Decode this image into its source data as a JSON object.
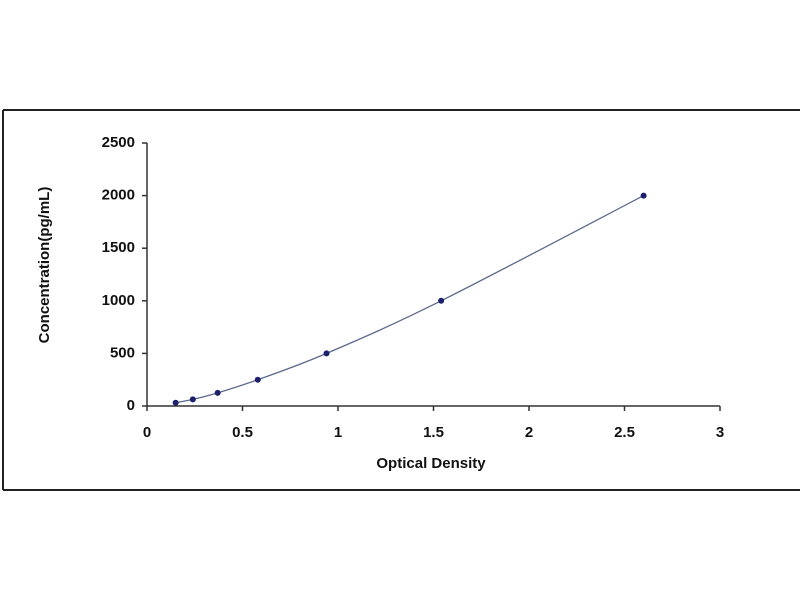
{
  "chart_data": {
    "type": "scatter",
    "x_label": "Optical Density",
    "y_label": "Concentration(pg/mL)",
    "x": [
      0.15,
      0.24,
      0.37,
      0.58,
      0.94,
      1.54,
      2.6
    ],
    "values": [
      31.25,
      62.5,
      125,
      250,
      500,
      1000,
      2000
    ],
    "color": "#1c1f6b",
    "line_color": "#5b6a8c",
    "fit_line": true,
    "xlim": [
      0,
      3
    ],
    "xticks": [
      0,
      0.5,
      1,
      1.5,
      2,
      2.5,
      3
    ],
    "ylim": [
      0,
      2500
    ],
    "yticks": [
      0,
      500,
      1000,
      1500,
      2000,
      2500
    ],
    "grid": false
  }
}
